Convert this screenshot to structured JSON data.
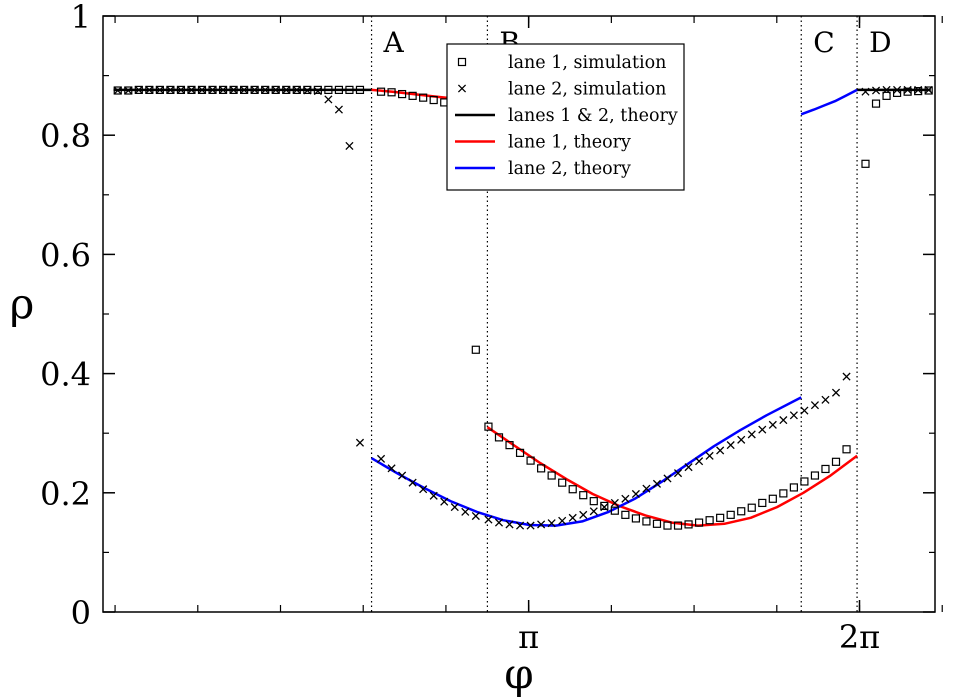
{
  "chart_data": {
    "type": "scatter",
    "xlabel": "φ",
    "ylabel": "ρ",
    "xlim": [
      -0.9,
      7.0
    ],
    "ylim": [
      0,
      1
    ],
    "x_ticks": [
      {
        "value": 3.14159,
        "label": "π"
      },
      {
        "value": 6.28319,
        "label": "2π"
      }
    ],
    "x_minor_ticks": [
      -0.7854,
      0.0,
      0.7854,
      1.5708,
      2.3562,
      3.1416,
      3.927,
      4.7124,
      5.4978,
      6.2832,
      7.0686
    ],
    "y_ticks": [
      {
        "value": 0,
        "label": "0"
      },
      {
        "value": 0.2,
        "label": "0.2"
      },
      {
        "value": 0.4,
        "label": "0.4"
      },
      {
        "value": 0.6,
        "label": "0.6"
      },
      {
        "value": 0.8,
        "label": "0.8"
      },
      {
        "value": 1,
        "label": "1"
      }
    ],
    "y_minor_ticks": [
      0.1,
      0.3,
      0.5,
      0.7,
      0.9
    ],
    "region_lines": [
      {
        "x": 1.65,
        "label": "A"
      },
      {
        "x": 2.75,
        "label": "B"
      },
      {
        "x": 5.73,
        "label": "C"
      },
      {
        "x": 6.26,
        "label": "D"
      }
    ],
    "legend": {
      "placement": "top-center",
      "entries": [
        {
          "label": "lane 1, simulation",
          "marker": "square",
          "color": "#000000"
        },
        {
          "label": "lane 2, simulation",
          "marker": "cross",
          "color": "#000000"
        },
        {
          "label": "lanes 1 & 2, theory",
          "marker": "line",
          "color": "#000000"
        },
        {
          "label": "lane 1, theory",
          "marker": "line",
          "color": "#ff0000"
        },
        {
          "label": "lane 2, theory",
          "marker": "line",
          "color": "#0000ff"
        }
      ]
    },
    "series": [
      {
        "name": "lane 1, simulation",
        "kind": "points",
        "marker": "square",
        "color": "#000000",
        "x": [
          -0.76,
          -0.66,
          -0.56,
          -0.46,
          -0.36,
          -0.26,
          -0.16,
          -0.06,
          0.04,
          0.14,
          0.24,
          0.34,
          0.44,
          0.54,
          0.64,
          0.74,
          0.84,
          0.94,
          1.04,
          1.14,
          1.24,
          1.34,
          1.44,
          1.54,
          1.74,
          1.84,
          1.94,
          2.04,
          2.14,
          2.24,
          2.34,
          2.44,
          2.54,
          2.64,
          2.76,
          2.86,
          2.96,
          3.06,
          3.16,
          3.26,
          3.36,
          3.46,
          3.56,
          3.66,
          3.76,
          3.86,
          3.96,
          4.06,
          4.16,
          4.26,
          4.36,
          4.46,
          4.56,
          4.66,
          4.76,
          4.86,
          4.96,
          5.06,
          5.16,
          5.26,
          5.36,
          5.46,
          5.56,
          5.66,
          5.76,
          5.86,
          5.96,
          6.06,
          6.16,
          6.34,
          6.44,
          6.54,
          6.64,
          6.74,
          6.84,
          6.94
        ],
        "y": [
          0.875,
          0.875,
          0.876,
          0.876,
          0.876,
          0.876,
          0.876,
          0.876,
          0.876,
          0.876,
          0.876,
          0.876,
          0.876,
          0.876,
          0.876,
          0.876,
          0.876,
          0.876,
          0.876,
          0.876,
          0.876,
          0.876,
          0.876,
          0.876,
          0.873,
          0.872,
          0.869,
          0.866,
          0.863,
          0.859,
          0.855,
          0.838,
          0.787,
          0.44,
          0.311,
          0.293,
          0.28,
          0.267,
          0.254,
          0.241,
          0.229,
          0.217,
          0.206,
          0.196,
          0.186,
          0.178,
          0.17,
          0.163,
          0.157,
          0.152,
          0.148,
          0.145,
          0.145,
          0.147,
          0.15,
          0.154,
          0.158,
          0.163,
          0.169,
          0.175,
          0.183,
          0.19,
          0.199,
          0.209,
          0.219,
          0.229,
          0.24,
          0.252,
          0.273,
          0.752,
          0.853,
          0.866,
          0.871,
          0.873,
          0.874,
          0.875
        ]
      },
      {
        "name": "lane 2, simulation",
        "kind": "points",
        "marker": "cross",
        "color": "#000000",
        "x": [
          -0.76,
          -0.66,
          -0.56,
          -0.46,
          -0.36,
          -0.26,
          -0.16,
          -0.06,
          0.04,
          0.14,
          0.24,
          0.34,
          0.44,
          0.54,
          0.64,
          0.74,
          0.84,
          0.94,
          1.04,
          1.14,
          1.24,
          1.34,
          1.44,
          1.54,
          1.74,
          1.84,
          1.94,
          2.04,
          2.14,
          2.24,
          2.34,
          2.44,
          2.54,
          2.64,
          2.76,
          2.86,
          2.96,
          3.06,
          3.16,
          3.26,
          3.36,
          3.46,
          3.56,
          3.66,
          3.76,
          3.86,
          3.96,
          4.06,
          4.16,
          4.26,
          4.36,
          4.46,
          4.56,
          4.66,
          4.76,
          4.86,
          4.96,
          5.06,
          5.16,
          5.26,
          5.36,
          5.46,
          5.56,
          5.66,
          5.76,
          5.86,
          5.96,
          6.06,
          6.16,
          6.34,
          6.44,
          6.54,
          6.64,
          6.74,
          6.84,
          6.94
        ],
        "y": [
          0.875,
          0.875,
          0.876,
          0.876,
          0.876,
          0.876,
          0.876,
          0.876,
          0.876,
          0.876,
          0.876,
          0.876,
          0.876,
          0.876,
          0.876,
          0.876,
          0.876,
          0.876,
          0.875,
          0.874,
          0.86,
          0.843,
          0.782,
          0.284,
          0.257,
          0.241,
          0.229,
          0.217,
          0.206,
          0.195,
          0.185,
          0.176,
          0.168,
          0.161,
          0.155,
          0.15,
          0.147,
          0.145,
          0.145,
          0.147,
          0.149,
          0.153,
          0.158,
          0.163,
          0.169,
          0.176,
          0.183,
          0.19,
          0.198,
          0.207,
          0.215,
          0.224,
          0.233,
          0.243,
          0.253,
          0.262,
          0.271,
          0.28,
          0.289,
          0.298,
          0.306,
          0.314,
          0.322,
          0.33,
          0.338,
          0.347,
          0.356,
          0.368,
          0.395,
          0.873,
          0.875,
          0.876,
          0.876,
          0.876,
          0.876,
          0.876
        ]
      },
      {
        "name": "lanes 1 & 2, theory",
        "kind": "line",
        "color": "#000000",
        "segments": [
          {
            "x": [
              -0.8,
              1.65
            ],
            "y": [
              0.876,
              0.876
            ]
          },
          {
            "x": [
              6.26,
              6.96
            ],
            "y": [
              0.876,
              0.876
            ]
          }
        ]
      },
      {
        "name": "lane 1, theory",
        "kind": "line",
        "color": "#ff0000",
        "segments": [
          {
            "x": [
              1.65,
              1.85,
              2.05,
              2.25,
              2.45,
              2.65,
              2.75
            ],
            "y": [
              0.876,
              0.873,
              0.869,
              0.865,
              0.861,
              0.857,
              0.855
            ]
          },
          {
            "x": [
              2.75,
              3.0,
              3.25,
              3.5,
              3.75,
              4.0,
              4.25,
              4.5,
              4.75,
              5.0,
              5.25,
              5.5,
              5.75,
              6.0,
              6.26
            ],
            "y": [
              0.31,
              0.28,
              0.25,
              0.223,
              0.198,
              0.178,
              0.162,
              0.15,
              0.145,
              0.148,
              0.158,
              0.176,
              0.2,
              0.228,
              0.262
            ]
          }
        ]
      },
      {
        "name": "lane 2, theory",
        "kind": "line",
        "color": "#0000ff",
        "segments": [
          {
            "x": [
              1.65,
              1.9,
              2.15,
              2.4,
              2.65,
              2.9,
              3.15,
              3.4,
              3.65,
              3.9,
              4.15,
              4.4,
              4.65,
              4.9,
              5.15,
              5.4,
              5.73
            ],
            "y": [
              0.258,
              0.232,
              0.208,
              0.186,
              0.168,
              0.154,
              0.146,
              0.145,
              0.152,
              0.168,
              0.19,
              0.218,
              0.248,
              0.278,
              0.305,
              0.33,
              0.36
            ]
          },
          {
            "x": [
              5.73,
              5.85,
              5.95,
              6.05,
              6.15,
              6.26
            ],
            "y": [
              0.835,
              0.843,
              0.85,
              0.857,
              0.866,
              0.876
            ]
          }
        ]
      }
    ]
  }
}
